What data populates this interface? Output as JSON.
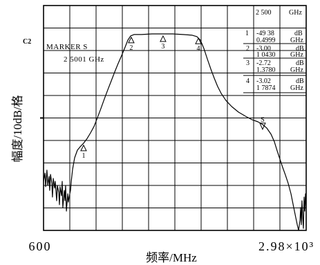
{
  "chart_data": {
    "type": "line",
    "xlabel": "频率/MHz",
    "ylabel": "幅度/10dB/格",
    "xlim": [
      600,
      2980
    ],
    "ylim": [
      -90,
      10
    ],
    "x_scale": "linear",
    "grid": true,
    "divisions": 10,
    "reference_level": -40,
    "x_tick_labels": [
      {
        "value": 600,
        "label": "600"
      },
      {
        "value": 2980,
        "label": "2.98×10³"
      }
    ],
    "series": [
      {
        "color": "#000000",
        "points": [
          [
            600,
            -68.2
          ],
          [
            613,
            -64.5
          ],
          [
            619,
            -70.6
          ],
          [
            631,
            -63.2
          ],
          [
            638,
            -70.0
          ],
          [
            650,
            -66.0
          ],
          [
            656,
            -72.2
          ],
          [
            663,
            -65.1
          ],
          [
            675,
            -69.1
          ],
          [
            681,
            -75.2
          ],
          [
            688,
            -66.9
          ],
          [
            700,
            -71.2
          ],
          [
            706,
            -68.2
          ],
          [
            719,
            -76.8
          ],
          [
            725,
            -70.0
          ],
          [
            738,
            -73.1
          ],
          [
            744,
            -78.6
          ],
          [
            750,
            -70.6
          ],
          [
            763,
            -74.6
          ],
          [
            769,
            -68.2
          ],
          [
            775,
            -79.8
          ],
          [
            788,
            -72.2
          ],
          [
            794,
            -76.8
          ],
          [
            800,
            -70.0
          ],
          [
            807,
            -81.4
          ],
          [
            819,
            -73.7
          ],
          [
            825,
            -77.4
          ],
          [
            832,
            -75.2
          ],
          [
            844,
            -72.2
          ],
          [
            851,
            -68.2
          ],
          [
            863,
            -62.9
          ],
          [
            882,
            -57.7
          ],
          [
            907,
            -54.3
          ],
          [
            932,
            -52.8
          ],
          [
            963,
            -51.2
          ],
          [
            995,
            -49.1
          ],
          [
            1026,
            -46.6
          ],
          [
            1057,
            -43.8
          ],
          [
            1089,
            -39.8
          ],
          [
            1120,
            -35.8
          ],
          [
            1151,
            -31.5
          ],
          [
            1182,
            -27.5
          ],
          [
            1214,
            -23.5
          ],
          [
            1245,
            -19.5
          ],
          [
            1276,
            -15.8
          ],
          [
            1308,
            -12.2
          ],
          [
            1339,
            -8.5
          ],
          [
            1364,
            -5.4
          ],
          [
            1389,
            -3.5
          ],
          [
            1420,
            -2.9
          ],
          [
            1489,
            -2.9
          ],
          [
            1583,
            -2.6
          ],
          [
            1677,
            -2.6
          ],
          [
            1771,
            -2.6
          ],
          [
            1865,
            -2.9
          ],
          [
            1947,
            -3.2
          ],
          [
            1990,
            -3.8
          ],
          [
            2022,
            -5.4
          ],
          [
            2053,
            -9.1
          ],
          [
            2084,
            -13.7
          ],
          [
            2116,
            -18.3
          ],
          [
            2147,
            -22.3
          ],
          [
            2178,
            -26.0
          ],
          [
            2210,
            -29.1
          ],
          [
            2253,
            -32.2
          ],
          [
            2304,
            -34.9
          ],
          [
            2366,
            -37.4
          ],
          [
            2429,
            -39.2
          ],
          [
            2491,
            -40.8
          ],
          [
            2542,
            -41.7
          ],
          [
            2585,
            -42.9
          ],
          [
            2623,
            -44.5
          ],
          [
            2661,
            -47.2
          ],
          [
            2692,
            -50.6
          ],
          [
            2717,
            -54.6
          ],
          [
            2742,
            -58.3
          ],
          [
            2767,
            -62.0
          ],
          [
            2792,
            -65.4
          ],
          [
            2817,
            -69.1
          ],
          [
            2842,
            -73.7
          ],
          [
            2861,
            -78.3
          ],
          [
            2880,
            -82.9
          ],
          [
            2899,
            -87.5
          ],
          [
            2911,
            -90.0
          ],
          [
            2924,
            -85.4
          ],
          [
            2930,
            -79.8
          ],
          [
            2936,
            -87.5
          ],
          [
            2942,
            -76.8
          ],
          [
            2949,
            -84.5
          ],
          [
            2955,
            -89.1
          ],
          [
            2961,
            -75.2
          ],
          [
            2967,
            -81.4
          ],
          [
            2974,
            -73.7
          ],
          [
            2980,
            -79.8
          ]
        ]
      }
    ],
    "markers": [
      {
        "label": "1",
        "x": 963,
        "y": -51.2,
        "symbol": "triangle-up"
      },
      {
        "label": "2",
        "x": 1395,
        "y": -3.2,
        "symbol": "triangle-up"
      },
      {
        "label": "3",
        "x": 1683,
        "y": -2.6,
        "symbol": "triangle-up"
      },
      {
        "label": "4",
        "x": 2003,
        "y": -3.6,
        "symbol": "triangle-up"
      },
      {
        "label": "S",
        "x": 2585,
        "y": -42.9,
        "symbol": "triangle-down"
      }
    ],
    "annotations": {
      "channel": "C2",
      "marker_title": "MARKER S",
      "marker_freq": "2 5001  GHz",
      "readout_top": {
        "value": "2 500",
        "unit": "GHz"
      },
      "readouts": [
        {
          "id": "1",
          "level": "-49 38",
          "level_unit": "dB",
          "freq": "0.4999",
          "freq_unit": "GHz"
        },
        {
          "id": "2",
          "level": "-3.00",
          "level_unit": "dB",
          "freq": "1 0430",
          "freq_unit": "GHz"
        },
        {
          "id": "3",
          "level": "-2.72",
          "level_unit": "dB",
          "freq": "1.3780",
          "freq_unit": "GHz"
        },
        {
          "id": "4",
          "level": "-3.02",
          "level_unit": "dB",
          "freq": "1 7874",
          "freq_unit": "GHz"
        }
      ]
    }
  }
}
